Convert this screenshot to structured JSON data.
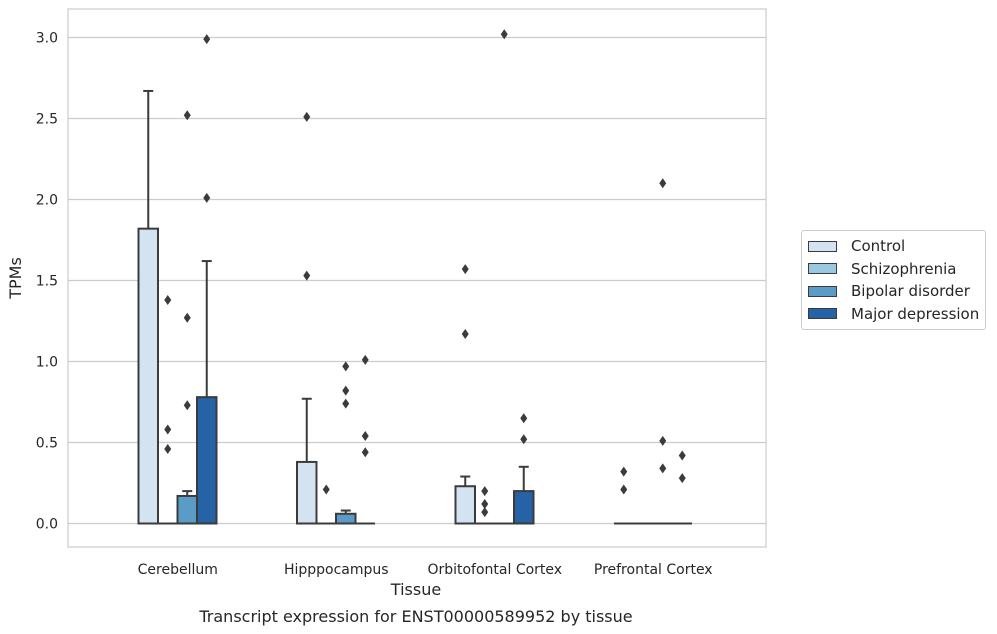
{
  "chart_data": {
    "type": "bar",
    "xlabel": "Tissue",
    "ylabel": "TPMs",
    "caption": "Transcript expression for ENST00000589952 by tissue",
    "categories": [
      "Cerebellum",
      "Hipppocampus",
      "Orbitofontal Cortex",
      "Prefrontal Cortex"
    ],
    "ylim": [
      -0.15,
      3.18
    ],
    "yticks": [
      "0.0",
      "0.5",
      "1.0",
      "1.5",
      "2.0",
      "2.5",
      "3.0"
    ],
    "grid": true,
    "legend_position": "right",
    "series": [
      {
        "name": "Control",
        "color": "#d4e3f2",
        "values": [
          1.82,
          0.38,
          0.23,
          0.0
        ],
        "whisker_top": [
          2.67,
          0.77,
          0.29,
          null
        ],
        "outliers": [
          [],
          [
            2.51,
            1.53
          ],
          [
            1.57,
            1.17
          ],
          [
            0.32,
            0.21
          ]
        ]
      },
      {
        "name": "Schizophrenia",
        "color": "#9ac8e0",
        "values": [
          0.0,
          0.0,
          0.0,
          0.0
        ],
        "whisker_top": [
          null,
          null,
          null,
          null
        ],
        "outliers": [
          [
            1.38,
            0.58,
            0.46
          ],
          [
            0.21
          ],
          [
            0.2,
            0.12,
            0.07
          ],
          []
        ]
      },
      {
        "name": "Bipolar disorder",
        "color": "#5a9bc8",
        "values": [
          0.17,
          0.06,
          0.0,
          0.0
        ],
        "whisker_top": [
          0.2,
          0.08,
          null,
          null
        ],
        "outliers": [
          [
            2.52,
            1.27,
            0.73
          ],
          [
            0.97,
            0.82,
            0.74
          ],
          [
            3.02
          ],
          [
            2.1,
            0.51,
            0.34
          ]
        ]
      },
      {
        "name": "Major depression",
        "color": "#2662a6",
        "values": [
          0.78,
          0.0,
          0.2,
          0.0
        ],
        "whisker_top": [
          1.62,
          null,
          0.35,
          null
        ],
        "outliers": [
          [
            2.99,
            2.01
          ],
          [
            1.01,
            0.54,
            0.44
          ],
          [
            0.65,
            0.52
          ],
          [
            0.42,
            0.28
          ]
        ]
      }
    ]
  }
}
